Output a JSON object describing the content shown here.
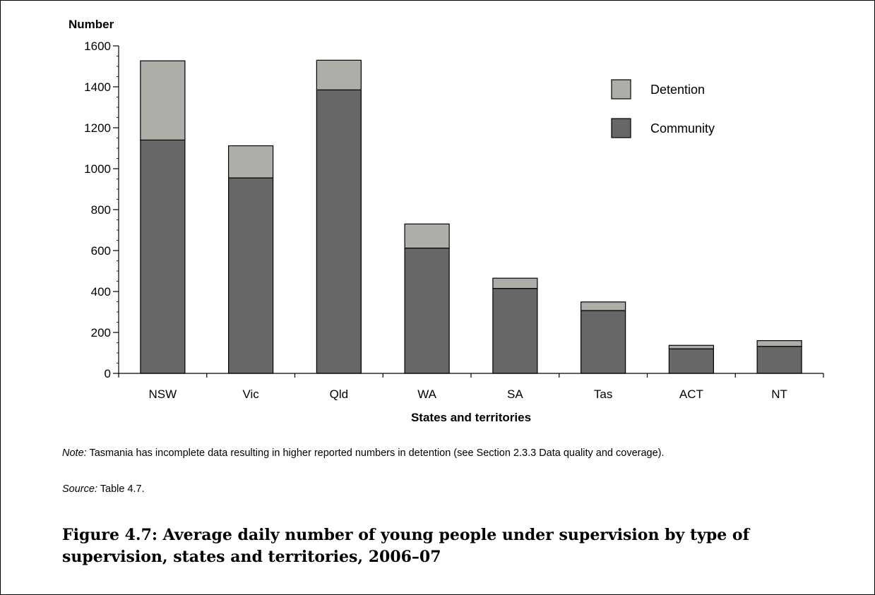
{
  "chart_data": {
    "type": "bar",
    "stacked": true,
    "ylabel": "Number",
    "xlabel": "States and territories",
    "categories": [
      "NSW",
      "Vic",
      "Qld",
      "WA",
      "SA",
      "Tas",
      "ACT",
      "NT"
    ],
    "series": [
      {
        "name": "Community",
        "color": "#686666",
        "values": [
          1140,
          955,
          1385,
          612,
          415,
          307,
          120,
          132
        ]
      },
      {
        "name": "Detention",
        "color": "#aeaea8",
        "values": [
          387,
          157,
          145,
          118,
          50,
          42,
          17,
          28
        ]
      }
    ],
    "ylim": [
      0,
      1600
    ],
    "yticks": [
      0,
      200,
      400,
      600,
      800,
      1000,
      1200,
      1400,
      1600
    ],
    "legend_order": [
      "Detention",
      "Community"
    ],
    "legend_position": "top-right",
    "grid": false
  },
  "note": {
    "label": "Note:",
    "text": " Tasmania has incomplete data resulting in higher reported numbers in detention (see Section 2.3.3 Data quality and coverage)."
  },
  "source": {
    "label": "Source:",
    "text": " Table 4.7."
  },
  "caption": "Figure 4.7: Average daily number of young people under supervision by type of supervision, states and territories, 2006–07"
}
